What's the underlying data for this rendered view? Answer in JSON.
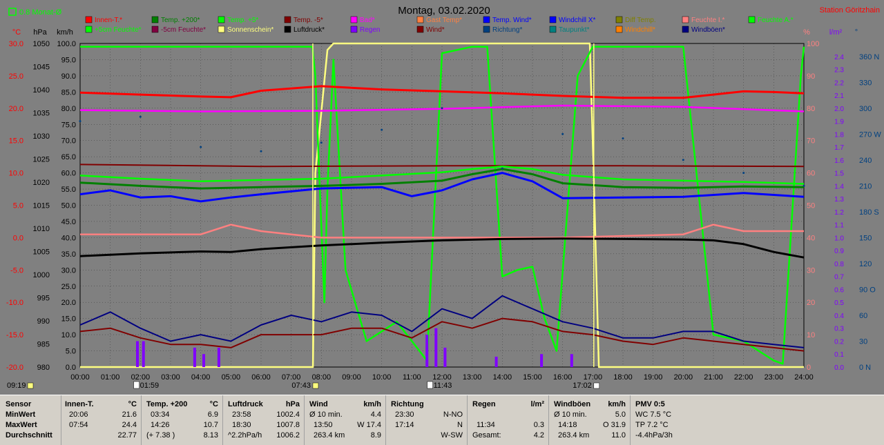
{
  "header": {
    "title": "Montag, 03.02.2020",
    "station": "Station Göritzhain",
    "month_avg_label": "0.8 Monat-Ø"
  },
  "legend": [
    {
      "label": "Innen-T.*",
      "color": "#ff0000"
    },
    {
      "label": "Temp. +200*",
      "color": "#008000"
    },
    {
      "label": "Temp. +5*",
      "color": "#00ff00"
    },
    {
      "label": "Temp. -5*",
      "color": "#800000"
    },
    {
      "label": "Bad*",
      "color": "#ff00ff"
    },
    {
      "label": "Gast Temp*",
      "color": "#ff8040"
    },
    {
      "label": "Temp. Wind*",
      "color": "#0000ff"
    },
    {
      "label": "Windchill X*",
      "color": "#0000ff"
    },
    {
      "label": "Diff Temp.",
      "color": "#808000"
    },
    {
      "label": "Feuchte I.*",
      "color": "#ff8080"
    },
    {
      "label": "Feuchte A.*",
      "color": "#00ff00"
    },
    {
      "label": "+5cm Feuchte*",
      "color": "#00ff00"
    },
    {
      "label": "-5cm Feuchte*",
      "color": "#800040"
    },
    {
      "label": "Sonnenschein*",
      "color": "#ffff80"
    },
    {
      "label": "Luftdruck*",
      "color": "#000000"
    },
    {
      "label": "Regen",
      "color": "#8000ff"
    },
    {
      "label": "Wind*",
      "color": "#800000"
    },
    {
      "label": "Richtung*",
      "color": "#004080"
    },
    {
      "label": "Taupunkt*",
      "color": "#008080"
    },
    {
      "label": "Windchill*",
      "color": "#ff8000"
    },
    {
      "label": "Windböen*",
      "color": "#000080"
    }
  ],
  "axes": {
    "temp_unit": "°C",
    "hpa_unit": "hPa",
    "kmh_unit": "km/h",
    "pct_unit": "%",
    "rain_unit": "l/m²",
    "dir_unit": "°",
    "temp_ticks": [
      "30.0",
      "25.0",
      "20.0",
      "15.0",
      "10.0",
      "5.0",
      "0.0",
      "-5.0",
      "-10.0",
      "-15.0",
      "-20.0"
    ],
    "hpa_ticks": [
      "1050",
      "1045",
      "1040",
      "1035",
      "1030",
      "1025",
      "1020",
      "1015",
      "1010",
      "1005",
      "1000",
      "995",
      "990",
      "985",
      "980"
    ],
    "kmh_ticks": [
      "100.0",
      "95.0",
      "90.0",
      "85.0",
      "80.0",
      "75.0",
      "70.0",
      "65.0",
      "60.0",
      "55.0",
      "50.0",
      "45.0",
      "40.0",
      "35.0",
      "30.0",
      "25.0",
      "20.0",
      "15.0",
      "10.0",
      "5.0",
      "0.0"
    ],
    "pct_ticks": [
      "100",
      "90",
      "80",
      "70",
      "60",
      "50",
      "40",
      "30",
      "20",
      "10",
      "0"
    ],
    "rain_ticks": [
      "2.4",
      "2.3",
      "2.2",
      "2.1",
      "2.0",
      "1.9",
      "1.8",
      "1.7",
      "1.6",
      "1.5",
      "1.4",
      "1.3",
      "1.2",
      "1.1",
      "1.0",
      "0.9",
      "0.8",
      "0.7",
      "0.6",
      "0.5",
      "0.4",
      "0.3",
      "0.2",
      "0.1",
      "0.0"
    ],
    "dir_ticks": [
      "360 N",
      "330",
      "300",
      "270 W",
      "240",
      "210",
      "180 S",
      "150",
      "120",
      "90 O",
      "60",
      "30",
      "0    N"
    ],
    "time_ticks": [
      "00:00",
      "01:00",
      "02:00",
      "03:00",
      "04:00",
      "05:00",
      "06:00",
      "07:00",
      "08:00",
      "09:00",
      "10:00",
      "11:00",
      "12:00",
      "13:00",
      "14:00",
      "15:00",
      "16:00",
      "17:00",
      "18:00",
      "19:00",
      "20:00",
      "21:00",
      "22:00",
      "23:00",
      "24:00"
    ]
  },
  "events": {
    "start": "09:19",
    "moonrise": "01:59",
    "sunrise": "07:43",
    "moonset": "11:43",
    "sunset": "17:02"
  },
  "chart_data": {
    "type": "line",
    "title": "Montag, 03.02.2020",
    "x_range": [
      "00:00",
      "24:00"
    ],
    "series": [
      {
        "name": "Innen-T.*",
        "axis": "temp",
        "x": [
          0,
          2,
          4,
          5,
          6,
          8,
          10,
          12,
          14,
          16,
          18,
          20,
          21,
          22,
          23,
          24
        ],
        "y": [
          22.4,
          22.1,
          21.8,
          21.7,
          22.7,
          23.4,
          22.9,
          22.6,
          22.3,
          21.9,
          21.6,
          21.6,
          22.1,
          22.6,
          22.5,
          22.3
        ]
      },
      {
        "name": "Bad*",
        "axis": "temp",
        "x": [
          0,
          4,
          8,
          12,
          16,
          20,
          24
        ],
        "y": [
          19.7,
          19.5,
          19.6,
          19.9,
          20.4,
          20.2,
          19.5
        ]
      },
      {
        "name": "Temp. -5*",
        "axis": "temp",
        "x": [
          0,
          6,
          12,
          18,
          24
        ],
        "y": [
          11.3,
          11.0,
          11.1,
          11.1,
          11.0
        ]
      },
      {
        "name": "Temp. +5*",
        "axis": "temp",
        "x": [
          0,
          2,
          4,
          6,
          8,
          10,
          12,
          13,
          14,
          15,
          16,
          18,
          20,
          22,
          24
        ],
        "y": [
          9.6,
          9.1,
          8.7,
          8.9,
          9.1,
          9.6,
          10.1,
          10.6,
          11.0,
          10.6,
          9.7,
          9.0,
          8.8,
          8.6,
          8.3
        ]
      },
      {
        "name": "Temp. +200*",
        "axis": "temp",
        "x": [
          0,
          2,
          4,
          6,
          8,
          10,
          12,
          13,
          14,
          15,
          16,
          18,
          20,
          22,
          24
        ],
        "y": [
          8.5,
          8.0,
          7.6,
          7.8,
          8.0,
          8.3,
          8.8,
          9.8,
          10.6,
          9.8,
          8.4,
          7.8,
          7.7,
          7.9,
          7.8
        ]
      },
      {
        "name": "Temp. Wind*",
        "axis": "temp",
        "x": [
          0,
          1,
          2,
          3,
          4,
          5,
          6,
          8,
          10,
          11,
          12,
          13,
          14,
          15,
          16,
          18,
          20,
          22,
          24
        ],
        "y": [
          6.7,
          7.3,
          6.2,
          6.4,
          5.6,
          6.2,
          6.7,
          7.6,
          7.8,
          6.4,
          7.3,
          9.0,
          10.0,
          8.7,
          6.1,
          6.2,
          6.3,
          6.9,
          6.3
        ]
      },
      {
        "name": "Feuchte I.*",
        "axis": "pct",
        "x": [
          0,
          4,
          5,
          6,
          7,
          8,
          12,
          16,
          20,
          21,
          22,
          24
        ],
        "y": [
          41,
          41,
          44,
          42,
          41,
          40,
          40,
          40,
          41,
          44,
          42,
          42
        ]
      },
      {
        "name": "Feuchte A.*",
        "axis": "pct",
        "x": [
          0,
          7.7,
          7.8,
          8.1,
          8.2,
          8.4,
          8.8,
          9.5,
          10.5,
          11.5,
          12.0,
          13.0,
          13.5,
          14.0,
          14.5,
          15.0,
          15.4,
          15.8,
          16.5,
          17.0,
          18.0,
          20.0,
          21.0,
          22.0,
          23.0,
          23.3,
          23.9,
          24
        ],
        "y": [
          99,
          99,
          90,
          20,
          55,
          95,
          30,
          8,
          14,
          2,
          97,
          99,
          99,
          28,
          30,
          31,
          15,
          5,
          90,
          99,
          99,
          99,
          10,
          8,
          2,
          1,
          90,
          99
        ]
      },
      {
        "name": "Sonnenschein*",
        "axis": "pct",
        "x": [
          0,
          7.72,
          7.8,
          8.2,
          8.4,
          16.9,
          17.03,
          17.2,
          24
        ],
        "y": [
          0,
          0,
          60,
          98,
          100,
          100,
          60,
          0,
          0
        ]
      },
      {
        "name": "Luftdruck*",
        "axis": "hpa",
        "x": [
          0,
          2,
          4,
          5,
          6,
          8,
          10,
          12,
          14,
          16,
          18,
          20,
          21,
          22,
          23,
          24
        ],
        "y": [
          1004.0,
          1004.6,
          1005.0,
          1004.9,
          1005.5,
          1006.3,
          1006.9,
          1007.4,
          1007.7,
          1007.8,
          1007.7,
          1007.6,
          1007.4,
          1006.6,
          1004.9,
          1003.7
        ]
      },
      {
        "name": "Wind*",
        "axis": "kmh",
        "x": [
          0,
          1,
          2,
          3,
          4,
          5,
          6,
          7,
          8,
          9,
          10,
          11,
          12,
          13,
          14,
          15,
          16,
          17,
          18,
          19,
          20,
          21,
          22,
          23,
          24
        ],
        "y": [
          11,
          12,
          9,
          7,
          7,
          6,
          10,
          10,
          10,
          12,
          12,
          9,
          14,
          12,
          15,
          14,
          11,
          10,
          8,
          7,
          9,
          8,
          7,
          6,
          5
        ]
      },
      {
        "name": "Windböen*",
        "axis": "kmh",
        "x": [
          0,
          1,
          2,
          3,
          4,
          5,
          6,
          7,
          8,
          9,
          10,
          11,
          12,
          13,
          14,
          15,
          16,
          17,
          18,
          19,
          20,
          21,
          22,
          23,
          24
        ],
        "y": [
          13,
          17,
          12,
          8,
          10,
          8,
          13,
          16,
          14,
          17,
          16,
          11,
          18,
          15,
          22,
          18,
          14,
          12,
          9,
          9,
          11,
          11,
          8,
          7,
          6
        ]
      },
      {
        "name": "Richtung*",
        "axis": "dir",
        "x": [
          0,
          2,
          4,
          6,
          8,
          10,
          12,
          14,
          16,
          18,
          20,
          22,
          24
        ],
        "y": [
          285,
          290,
          255,
          250,
          260,
          275,
          300,
          230,
          270,
          265,
          240,
          225,
          210
        ]
      },
      {
        "name": "Regen",
        "axis": "rain",
        "x": [
          1.9,
          2.1,
          3.8,
          4.1,
          4.6,
          11.5,
          11.8,
          12.1,
          13.8,
          15.3,
          16.3
        ],
        "y": [
          0.2,
          0.2,
          0.15,
          0.1,
          0.15,
          0.25,
          0.3,
          0.15,
          0.08,
          0.1,
          0.1
        ]
      }
    ]
  },
  "stats": {
    "row_labels": {
      "title": "Sensor",
      "min": "MinWert",
      "max": "MaxWert",
      "avg": "Durchschnitt"
    },
    "innen": {
      "title": "Innen-T.",
      "unit": "°C",
      "min_time": "20:06",
      "min_val": "21.6",
      "max_time": "07:54",
      "max_val": "24.4",
      "avg": "22.77"
    },
    "temp": {
      "title": "Temp. +200",
      "unit": "°C",
      "min_time": "03:34",
      "min_val": "6.9",
      "max_time": "14:26",
      "max_val": "10.7",
      "avg_extra": "(+ 7.38 )",
      "avg": "8.13"
    },
    "press": {
      "title": "Luftdruck",
      "unit": "hPa",
      "min_time": "23:58",
      "min_val": "1002.4",
      "max_time": "18:30",
      "max_val": "1007.8",
      "trend": "^2.2hPa/h",
      "avg": "1006.2"
    },
    "wind": {
      "title": "Wind",
      "unit": "km/h",
      "r1_label": "Ø 10 min.",
      "r1_val": "4.4",
      "r2_label": "13:50",
      "r2_val": "W 17.4",
      "r3_label": "263.4 km",
      "r3_val": "8.9"
    },
    "dir": {
      "title": "Richtung",
      "r1_label": "23:30",
      "r1_val": "N-NO",
      "r2_label": "17:14",
      "r2_val": "N",
      "r3_val": "W-SW"
    },
    "rain": {
      "title": "Regen",
      "unit": "l/m²",
      "r2_label": "11:34",
      "r2_val": "0.3",
      "r3_label": "Gesamt:",
      "r3_val": "4.2"
    },
    "gust": {
      "title": "Windböen",
      "unit": "km/h",
      "r1_label": "Ø 10 min.",
      "r1_val": "5.0",
      "r2_label": "14:18",
      "r2_val": "O 31.9",
      "r3_label": "263.4 km",
      "r3_val": "11.0"
    },
    "pmv": {
      "title": "PMV 0:5",
      "r1": "WC 7.5 °C",
      "r2": "TP 7.2 °C",
      "r3": "-4.4hPa/3h"
    }
  }
}
